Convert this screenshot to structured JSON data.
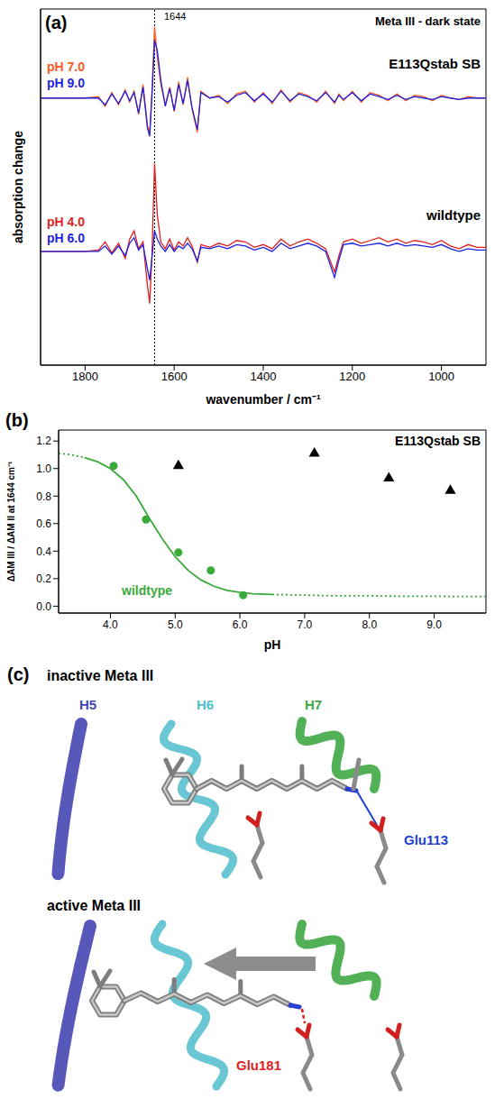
{
  "chart_data": [
    {
      "type": "line",
      "label": "(a)",
      "title": "Meta III - dark state",
      "x_label": "wavenumber / cm⁻¹",
      "y_label": "absorption change",
      "x": [
        1900,
        1800,
        1770,
        1755,
        1740,
        1725,
        1710,
        1700,
        1690,
        1680,
        1670,
        1660,
        1655,
        1650,
        1644,
        1638,
        1630,
        1620,
        1610,
        1600,
        1590,
        1580,
        1570,
        1560,
        1548,
        1540,
        1520,
        1500,
        1480,
        1460,
        1440,
        1420,
        1400,
        1380,
        1360,
        1340,
        1320,
        1300,
        1280,
        1260,
        1240,
        1230,
        1220,
        1200,
        1180,
        1160,
        1140,
        1120,
        1100,
        1080,
        1060,
        1040,
        1020,
        1000,
        980,
        960,
        940,
        920,
        900
      ],
      "xlim": [
        1900,
        900
      ],
      "xticks": [
        1800,
        1600,
        1400,
        1200,
        1000
      ],
      "ylim": [
        -1.2,
        1.4
      ],
      "tick_labels": "x",
      "annotations": [
        {
          "x": 1644,
          "text": "1644"
        }
      ],
      "group_labels": [
        "E113Qstab SB",
        "wildtype"
      ],
      "series": [
        {
          "name": "pH 7.0",
          "color": "#ff5a1f",
          "values": [
            0.75,
            0.75,
            0.76,
            0.69,
            0.79,
            0.7,
            0.81,
            0.72,
            0.8,
            0.63,
            0.85,
            0.55,
            0.5,
            0.8,
            1.27,
            1.05,
            0.85,
            0.7,
            0.83,
            0.65,
            0.87,
            0.7,
            0.9,
            0.67,
            0.5,
            0.8,
            0.75,
            0.77,
            0.71,
            0.78,
            0.8,
            0.72,
            0.79,
            0.71,
            0.81,
            0.72,
            0.79,
            0.77,
            0.72,
            0.8,
            0.71,
            0.78,
            0.73,
            0.8,
            0.72,
            0.79,
            0.77,
            0.73,
            0.78,
            0.73,
            0.77,
            0.76,
            0.73,
            0.77,
            0.75,
            0.74,
            0.76,
            0.75,
            0.75
          ]
        },
        {
          "name": "pH 9.0",
          "color": "#1f1fe0",
          "values": [
            0.75,
            0.75,
            0.75,
            0.7,
            0.78,
            0.71,
            0.8,
            0.73,
            0.79,
            0.64,
            0.83,
            0.53,
            0.47,
            0.76,
            1.17,
            1.1,
            0.88,
            0.69,
            0.82,
            0.66,
            0.85,
            0.71,
            0.88,
            0.68,
            0.52,
            0.79,
            0.75,
            0.76,
            0.72,
            0.77,
            0.79,
            0.73,
            0.78,
            0.72,
            0.8,
            0.73,
            0.78,
            0.76,
            0.73,
            0.79,
            0.72,
            0.77,
            0.74,
            0.79,
            0.73,
            0.78,
            0.76,
            0.74,
            0.77,
            0.74,
            0.76,
            0.75,
            0.74,
            0.76,
            0.75,
            0.74,
            0.75,
            0.75,
            0.75
          ]
        },
        {
          "name": "pH 4.0",
          "color": "#e01f1f",
          "values": [
            -0.37,
            -0.37,
            -0.36,
            -0.3,
            -0.38,
            -0.31,
            -0.42,
            -0.28,
            -0.22,
            -0.35,
            -0.3,
            -0.62,
            -0.75,
            -0.4,
            0.27,
            -0.1,
            -0.3,
            -0.35,
            -0.28,
            -0.36,
            -0.3,
            -0.33,
            -0.27,
            -0.33,
            -0.45,
            -0.32,
            -0.34,
            -0.31,
            -0.33,
            -0.29,
            -0.3,
            -0.34,
            -0.32,
            -0.35,
            -0.28,
            -0.33,
            -0.3,
            -0.28,
            -0.31,
            -0.35,
            -0.52,
            -0.4,
            -0.3,
            -0.28,
            -0.31,
            -0.29,
            -0.27,
            -0.3,
            -0.28,
            -0.31,
            -0.29,
            -0.3,
            -0.32,
            -0.29,
            -0.33,
            -0.35,
            -0.32,
            -0.34,
            -0.34
          ]
        },
        {
          "name": "pH 6.0",
          "color": "#1f1fe0",
          "values": [
            -0.37,
            -0.37,
            -0.37,
            -0.33,
            -0.39,
            -0.33,
            -0.4,
            -0.31,
            -0.27,
            -0.36,
            -0.32,
            -0.5,
            -0.58,
            -0.42,
            -0.22,
            -0.28,
            -0.33,
            -0.37,
            -0.32,
            -0.37,
            -0.33,
            -0.35,
            -0.31,
            -0.35,
            -0.44,
            -0.34,
            -0.35,
            -0.33,
            -0.35,
            -0.32,
            -0.33,
            -0.36,
            -0.34,
            -0.37,
            -0.31,
            -0.35,
            -0.33,
            -0.31,
            -0.33,
            -0.37,
            -0.56,
            -0.43,
            -0.32,
            -0.31,
            -0.33,
            -0.32,
            -0.31,
            -0.33,
            -0.31,
            -0.33,
            -0.32,
            -0.33,
            -0.34,
            -0.32,
            -0.35,
            -0.37,
            -0.35,
            -0.36,
            -0.36
          ]
        }
      ]
    },
    {
      "type": "scatter",
      "label": "(b)",
      "x_label": "pH",
      "y_label": "ΔAM III / ΔAM II at 1644 cm⁻¹",
      "xlim": [
        3.2,
        9.8
      ],
      "xticks": [
        {
          "value": 4,
          "label": "4.0"
        },
        {
          "value": 5,
          "label": "5.0"
        },
        {
          "value": 6,
          "label": "6.0"
        },
        {
          "value": 7,
          "label": "7.0"
        },
        {
          "value": 8,
          "label": "8.0"
        },
        {
          "value": 9,
          "label": "9.0"
        }
      ],
      "ylim": [
        -0.05,
        1.28
      ],
      "yticks": [
        {
          "value": 0,
          "label": "0.0"
        },
        0.2,
        0.4,
        0.6,
        0.8,
        {
          "value": 1,
          "label": "1.0"
        },
        1.2
      ],
      "series": [
        {
          "name": "wildtype",
          "type": "scatter",
          "marker": "circle",
          "color": "#3aaa3a",
          "x": [
            4.05,
            4.55,
            5.05,
            5.55,
            6.05
          ],
          "values": [
            1.02,
            0.63,
            0.39,
            0.26,
            0.08
          ]
        },
        {
          "name": "E113Qstab SB",
          "type": "scatter",
          "marker": "triangle",
          "color": "#000000",
          "x": [
            5.05,
            7.15,
            8.3,
            9.25
          ],
          "values": [
            1.02,
            1.11,
            0.93,
            0.84
          ]
        },
        {
          "type": "line",
          "line_style": "solid",
          "color": "#3aaa3a",
          "x": [
            3.2,
            3.4,
            3.6,
            3.8,
            4.0,
            4.2,
            4.4,
            4.6,
            4.8,
            5.0,
            5.2,
            5.4,
            5.6,
            5.8,
            6.0,
            6.2,
            6.5,
            7.0,
            7.5,
            8.0,
            8.5,
            9.0,
            9.5,
            9.8
          ],
          "values": [
            null,
            null,
            1.08,
            1.05,
            1.0,
            0.92,
            0.8,
            0.64,
            0.49,
            0.36,
            0.26,
            0.19,
            0.145,
            0.115,
            0.1,
            0.09,
            0.085,
            null,
            null,
            null,
            null,
            null,
            null,
            null
          ]
        },
        {
          "type": "line",
          "line_style": "dotted",
          "color": "#3aaa3a",
          "x": [
            3.2,
            3.4,
            3.6,
            3.8,
            4.0,
            4.2,
            4.4,
            4.6,
            4.8,
            5.0,
            5.2,
            5.4,
            5.6,
            5.8,
            6.0,
            6.2,
            6.5,
            7.0,
            7.5,
            8.0,
            8.5,
            9.0,
            9.5,
            9.8
          ],
          "values": [
            1.11,
            1.1,
            1.08,
            null,
            null,
            null,
            null,
            null,
            null,
            null,
            null,
            null,
            null,
            null,
            null,
            null,
            0.085,
            0.08,
            0.075,
            0.075,
            0.072,
            0.072,
            0.07,
            0.07
          ]
        }
      ]
    }
  ],
  "diagram": {
    "label": "(c)",
    "panels": [
      {
        "title": "inactive Meta III",
        "helices": [
          {
            "text": "H5",
            "color": "#4646b4"
          },
          {
            "text": "H6",
            "color": "#4fbccb"
          },
          {
            "text": "H7",
            "color": "#3fa845"
          }
        ],
        "residue": {
          "text": "Glu113",
          "color": "#1f3fd0"
        }
      },
      {
        "title": "active Meta III",
        "residue": {
          "text": "Glu181",
          "color": "#e01f1f"
        }
      }
    ]
  }
}
